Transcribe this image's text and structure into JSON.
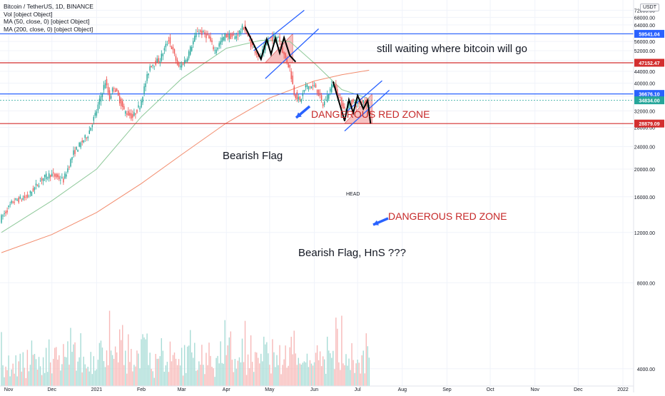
{
  "header": {
    "title": "Bitcoin / TetherUS, 1D, BINANCE",
    "volume_label": "Vol [object Object]",
    "ma50_label": "MA (50, close, 0) [object Object]",
    "ma200_label": "MA (200, close, 0) [object Object]"
  },
  "currency": "USDT",
  "annotations": {
    "top_note": "still waiting where bitcoin will go",
    "flag1": "Bearish Flag",
    "flag2": "Bearish Flag, HnS ???",
    "red_zone1": "DANGEROUS RED ZONE",
    "red_zone2": "DANGEROUS RED ZONE",
    "head": "HEAD"
  },
  "colors": {
    "up": "#26a69a",
    "down": "#ef5350",
    "blue_line": "#2962ff",
    "red_line": "#d32f2f",
    "ma50": "#8fc99a",
    "ma200": "#f28b6c",
    "zone_fill": "#f4b6b6"
  },
  "chart_data": {
    "type": "candlestick",
    "y_scale": "log",
    "ylim": [
      3400,
      76000
    ],
    "y_ticks": [
      4000,
      8000,
      12000,
      16000,
      20000,
      24000,
      28000,
      32000,
      36000,
      40000,
      44000,
      48000,
      52000,
      56000,
      60000,
      64000,
      68000,
      72000
    ],
    "x_ticks": [
      "Nov",
      "Dec",
      "2021",
      "Feb",
      "Mar",
      "Apr",
      "May",
      "Jun",
      "Jul",
      "Aug",
      "Sep",
      "Oct",
      "Nov",
      "Dec",
      "2022"
    ],
    "price_levels": [
      {
        "label": "59541.04",
        "value": 59541.04,
        "color": "#2962ff"
      },
      {
        "label": "47152.47",
        "value": 47152.47,
        "color": "#d32f2f"
      },
      {
        "label": "36676.10",
        "value": 36676.1,
        "color": "#2962ff"
      },
      {
        "label": "34834.00",
        "value": 34834.0,
        "color": "#26a69a"
      },
      {
        "label": "28879.09",
        "value": 28879.09,
        "color": "#d32f2f"
      }
    ],
    "price_path": [
      [
        "2020-10-27",
        13300
      ],
      [
        "2020-11-05",
        15400
      ],
      [
        "2020-11-15",
        16000
      ],
      [
        "2020-11-25",
        18500
      ],
      [
        "2020-12-01",
        19200
      ],
      [
        "2020-12-10",
        18300
      ],
      [
        "2020-12-17",
        22800
      ],
      [
        "2020-12-27",
        26500
      ],
      [
        "2021-01-02",
        32000
      ],
      [
        "2021-01-08",
        40500
      ],
      [
        "2021-01-11",
        35500
      ],
      [
        "2021-01-14",
        39000
      ],
      [
        "2021-01-21",
        32000
      ],
      [
        "2021-01-27",
        30400
      ],
      [
        "2021-02-01",
        33500
      ],
      [
        "2021-02-08",
        46000
      ],
      [
        "2021-02-15",
        48500
      ],
      [
        "2021-02-21",
        57000
      ],
      [
        "2021-02-28",
        45200
      ],
      [
        "2021-03-05",
        48500
      ],
      [
        "2021-03-13",
        61000
      ],
      [
        "2021-03-20",
        58500
      ],
      [
        "2021-03-25",
        52000
      ],
      [
        "2021-04-01",
        58800
      ],
      [
        "2021-04-08",
        58000
      ],
      [
        "2021-04-14",
        63000
      ],
      [
        "2021-04-18",
        56000
      ],
      [
        "2021-04-23",
        51000
      ],
      [
        "2021-04-25",
        49000
      ],
      [
        "2021-05-01",
        57000
      ],
      [
        "2021-05-08",
        58500
      ],
      [
        "2021-05-12",
        50000
      ],
      [
        "2021-05-16",
        45000
      ],
      [
        "2021-05-19",
        37000
      ],
      [
        "2021-05-23",
        34500
      ],
      [
        "2021-05-27",
        39000
      ],
      [
        "2021-06-03",
        38800
      ],
      [
        "2021-06-08",
        33500
      ],
      [
        "2021-06-15",
        40000
      ],
      [
        "2021-06-21",
        34000
      ],
      [
        "2021-06-23",
        32500
      ],
      [
        "2021-06-28",
        34600
      ],
      [
        "2021-07-01",
        33600
      ],
      [
        "2021-07-06",
        35000
      ],
      [
        "2021-07-09",
        33500
      ]
    ],
    "ma50": [
      [
        "2020-10-27",
        12000
      ],
      [
        "2020-12-01",
        15500
      ],
      [
        "2021-01-01",
        20000
      ],
      [
        "2021-02-01",
        30500
      ],
      [
        "2021-03-01",
        41500
      ],
      [
        "2021-04-01",
        53000
      ],
      [
        "2021-04-25",
        56500
      ],
      [
        "2021-05-15",
        56000
      ],
      [
        "2021-06-01",
        47000
      ],
      [
        "2021-06-20",
        38000
      ],
      [
        "2021-07-09",
        35300
      ]
    ],
    "ma200": [
      [
        "2020-10-27",
        10200
      ],
      [
        "2020-12-01",
        11800
      ],
      [
        "2021-01-01",
        14100
      ],
      [
        "2021-02-01",
        17800
      ],
      [
        "2021-03-01",
        22500
      ],
      [
        "2021-04-01",
        29000
      ],
      [
        "2021-05-01",
        35500
      ],
      [
        "2021-06-01",
        40700
      ],
      [
        "2021-06-20",
        42800
      ],
      [
        "2021-07-09",
        44400
      ]
    ],
    "volume_max": 20000
  }
}
